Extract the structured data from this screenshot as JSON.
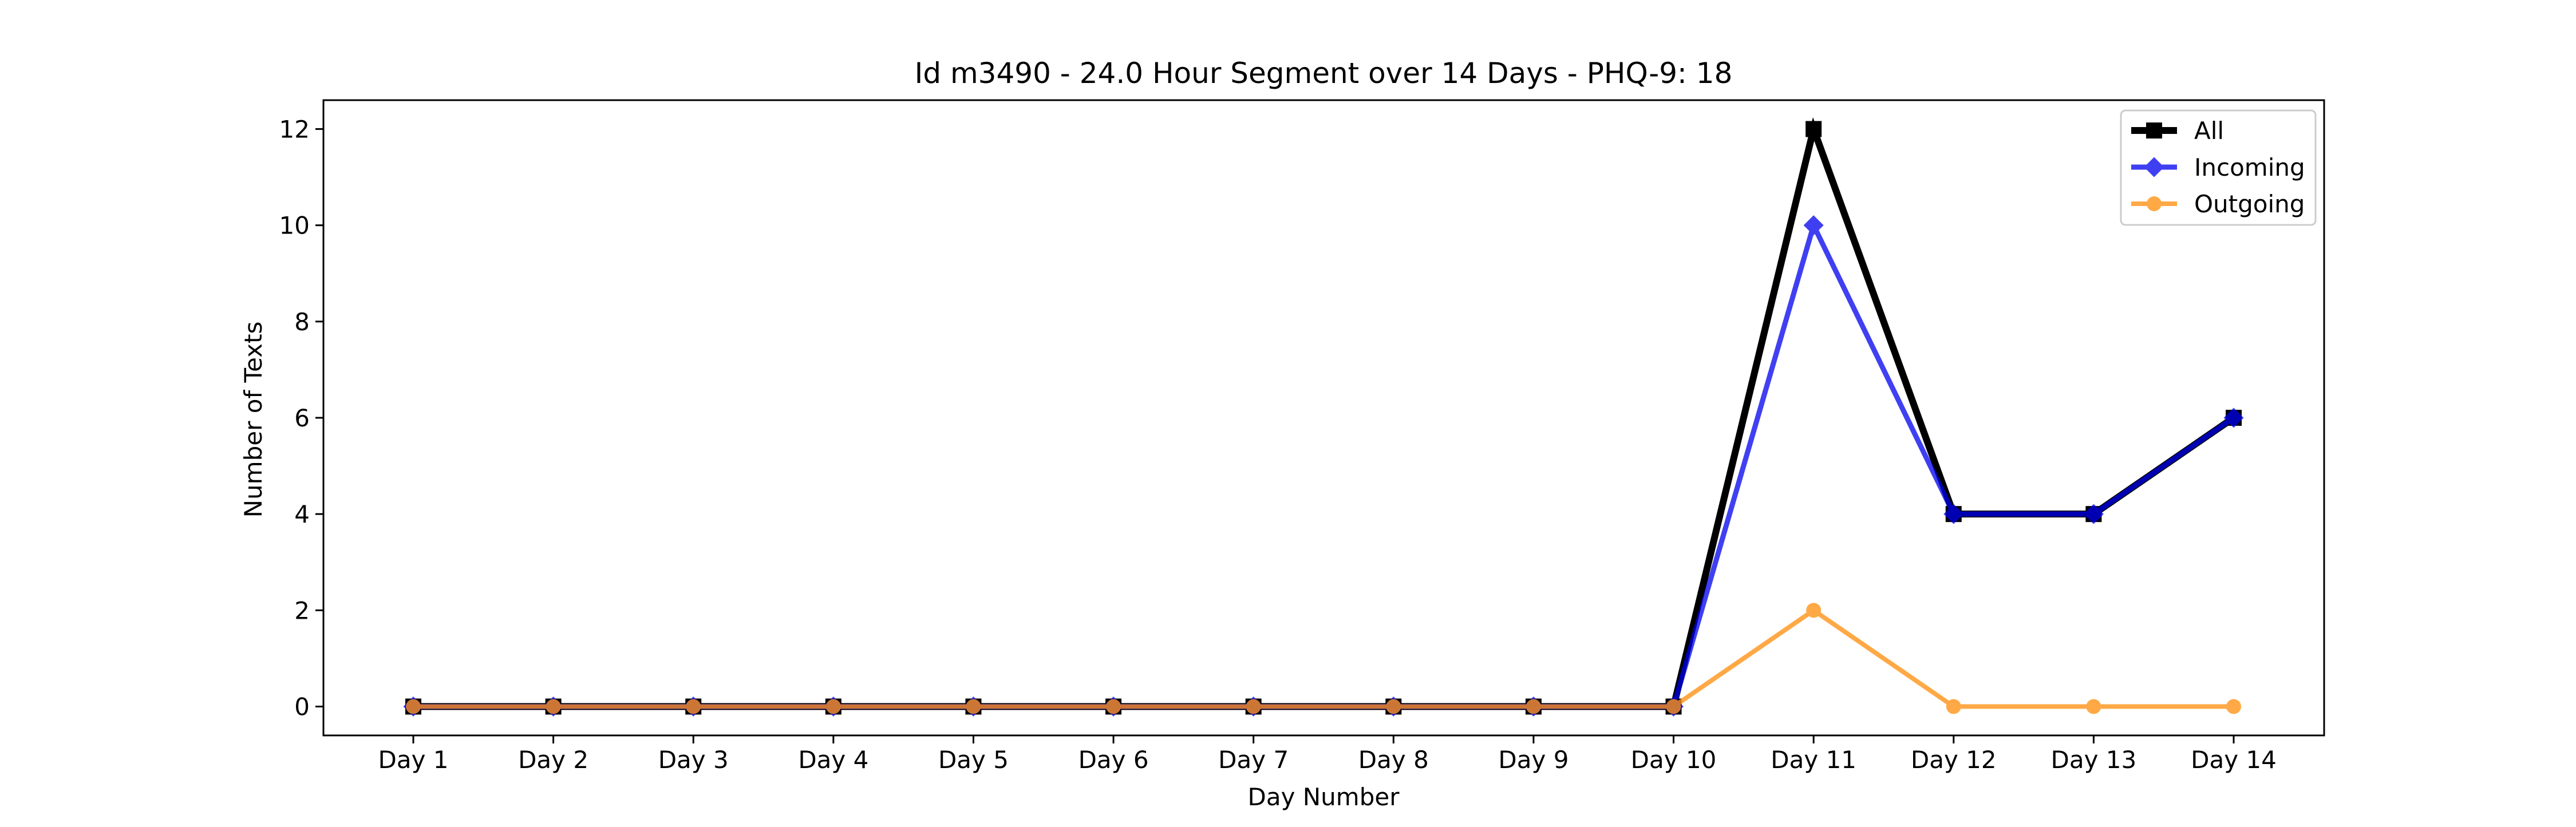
{
  "chart_data": {
    "type": "line",
    "title": "Id m3490 - 24.0 Hour Segment over 14 Days - PHQ-9: 18",
    "xlabel": "Day Number",
    "ylabel": "Number of Texts",
    "categories": [
      "Day 1",
      "Day 2",
      "Day 3",
      "Day 4",
      "Day 5",
      "Day 6",
      "Day 7",
      "Day 8",
      "Day 9",
      "Day 10",
      "Day 11",
      "Day 12",
      "Day 13",
      "Day 14"
    ],
    "ylim": [
      -0.6,
      12.6
    ],
    "yticks": [
      0,
      2,
      4,
      6,
      8,
      10,
      12
    ],
    "grid": false,
    "legend_position": "top-right",
    "series": [
      {
        "name": "All",
        "color": "#000000",
        "marker": "square",
        "values": [
          0,
          0,
          0,
          0,
          0,
          0,
          0,
          0,
          0,
          0,
          12,
          4,
          4,
          6
        ]
      },
      {
        "name": "Incoming",
        "color": "#0000ee",
        "marker": "diamond",
        "values": [
          0,
          0,
          0,
          0,
          0,
          0,
          0,
          0,
          0,
          0,
          10,
          4,
          4,
          6
        ]
      },
      {
        "name": "Outgoing",
        "color": "#ff9418",
        "marker": "circle",
        "values": [
          0,
          0,
          0,
          0,
          0,
          0,
          0,
          0,
          0,
          0,
          2,
          0,
          0,
          0
        ]
      }
    ]
  }
}
